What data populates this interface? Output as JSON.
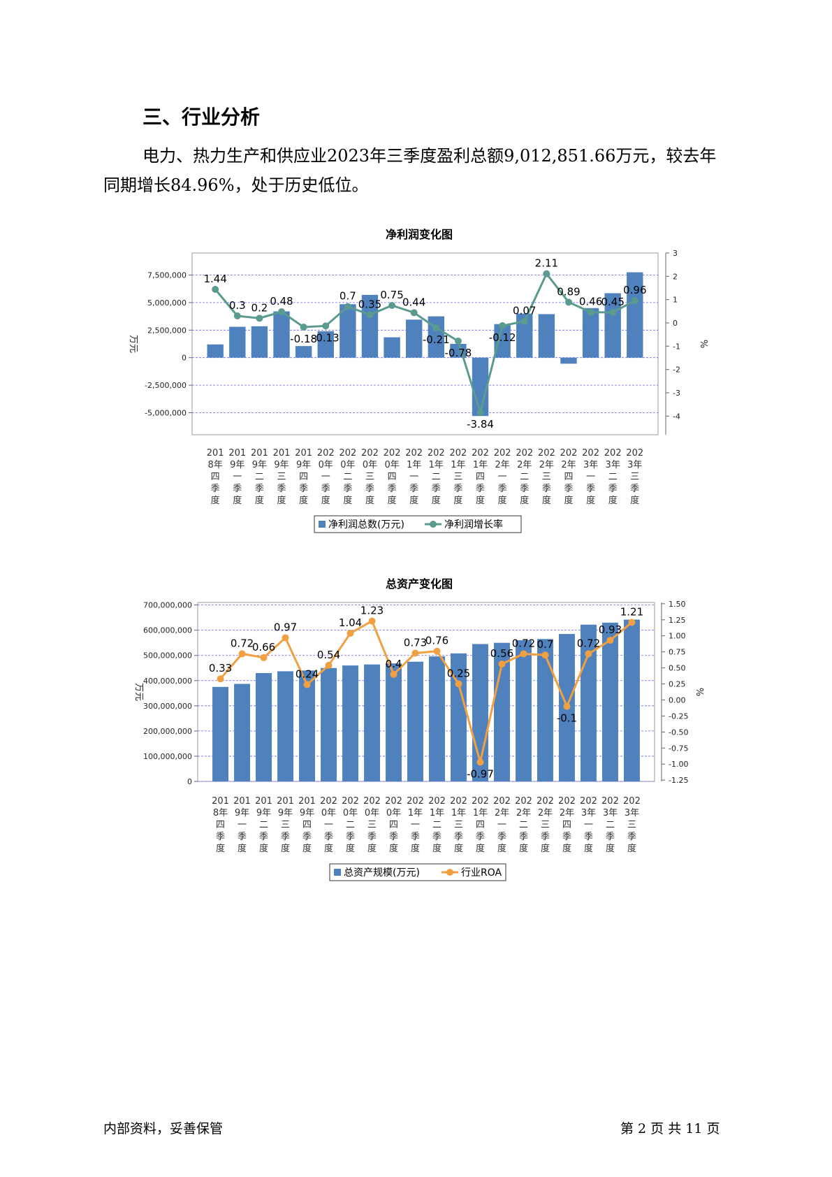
{
  "heading": "三、行业分析",
  "paragraph": "电力、热力生产和供应业2023年三季度盈利总额9,012,851.66万元，较去年同期增长84.96%，处于历史低位。",
  "footer": {
    "left": "内部资料，妥善保管",
    "right": "第 2 页   共 11 页"
  },
  "colors": {
    "bar": "#4f81bd",
    "line1": "#5b9b8f",
    "line2": "#f0a040",
    "grid": "#6666ff"
  },
  "chart_data": [
    {
      "type": "bar",
      "title": "净利润变化图",
      "ylabel": "万元",
      "y2label": "%",
      "categories": [
        "2018年四季度",
        "2019年一季度",
        "2019年二季度",
        "2019年三季度",
        "2019年四季度",
        "2020年一季度",
        "2020年二季度",
        "2020年三季度",
        "2020年四季度",
        "2021年一季度",
        "2021年二季度",
        "2021年三季度",
        "2021年四季度",
        "2022年一季度",
        "2022年二季度",
        "2022年三季度",
        "2022年四季度",
        "2023年一季度",
        "2023年二季度",
        "2023年三季度"
      ],
      "series": [
        {
          "name": "净利润总数(万元)",
          "type": "bar",
          "axis": "left",
          "values": [
            1200000,
            2800000,
            2850000,
            4200000,
            1050000,
            2400000,
            4850000,
            5700000,
            1850000,
            3450000,
            3750000,
            1250000,
            -5300000,
            3050000,
            4000000,
            3950000,
            -550000,
            4500000,
            5850000,
            7750000
          ]
        },
        {
          "name": "净利润增长率",
          "type": "line",
          "axis": "right",
          "values": [
            1.44,
            0.3,
            0.2,
            0.48,
            -0.18,
            -0.13,
            0.7,
            0.35,
            0.75,
            0.44,
            -0.21,
            -0.78,
            -3.84,
            -0.12,
            0.07,
            2.11,
            0.89,
            0.46,
            0.45,
            0.96
          ]
        }
      ],
      "ylim": [
        -7000000,
        9500000
      ],
      "yticks": [
        -5000000,
        -2500000,
        0,
        2500000,
        5000000,
        7500000
      ],
      "ytick_labels": [
        "-5,000,000",
        "-2,500,000",
        "0",
        "2,500,000",
        "5,000,000",
        "7,500,000"
      ],
      "y2lim": [
        -4.8,
        3
      ],
      "y2ticks": [
        -4,
        -3,
        -2,
        -1,
        0,
        1,
        2,
        3
      ],
      "y2tick_labels": [
        "-4",
        "-3",
        "-2",
        "-1",
        "0",
        "1",
        "2",
        "3"
      ],
      "legend": "bottom"
    },
    {
      "type": "bar",
      "title": "总资产变化图",
      "ylabel": "万元",
      "y2label": "%",
      "categories": [
        "2018年四季度",
        "2019年一季度",
        "2019年二季度",
        "2019年三季度",
        "2019年四季度",
        "2020年一季度",
        "2020年二季度",
        "2020年三季度",
        "2020年四季度",
        "2021年一季度",
        "2021年二季度",
        "2021年三季度",
        "2021年四季度",
        "2022年一季度",
        "2022年二季度",
        "2022年三季度",
        "2022年四季度",
        "2023年一季度",
        "2023年二季度",
        "2023年三季度"
      ],
      "series": [
        {
          "name": "总资产规模(万元)",
          "type": "bar",
          "axis": "left",
          "values": [
            375000000,
            387000000,
            430000000,
            437000000,
            440000000,
            450000000,
            460000000,
            464000000,
            468000000,
            475000000,
            496000000,
            508000000,
            545000000,
            550000000,
            560000000,
            565000000,
            585000000,
            622000000,
            630000000,
            642000000
          ]
        },
        {
          "name": "行业ROA",
          "type": "line",
          "axis": "right",
          "values": [
            0.33,
            0.72,
            0.66,
            0.97,
            0.24,
            0.54,
            1.04,
            1.23,
            0.4,
            0.73,
            0.76,
            0.25,
            -0.97,
            0.56,
            0.72,
            0.7,
            -0.1,
            0.72,
            0.93,
            1.21
          ]
        }
      ],
      "ylim": [
        0,
        710000000
      ],
      "yticks": [
        0,
        100000000,
        200000000,
        300000000,
        400000000,
        500000000,
        600000000,
        700000000
      ],
      "ytick_labels": [
        "0",
        "100,000,000",
        "200,000,000",
        "300,000,000",
        "400,000,000",
        "500,000,000",
        "600,000,000",
        "700,000,000"
      ],
      "y2lim": [
        -1.27,
        1.52
      ],
      "y2ticks": [
        -1.25,
        -1,
        -0.75,
        -0.5,
        -0.25,
        0,
        0.25,
        0.5,
        0.75,
        1,
        1.25,
        1.5
      ],
      "y2tick_labels": [
        "-1.25",
        "-1.00",
        "-0.75",
        "-0.50",
        "-0.25",
        "0.00",
        "0.25",
        "0.50",
        "0.75",
        "1.00",
        "1.25",
        "1.50"
      ],
      "legend": "bottom"
    }
  ]
}
